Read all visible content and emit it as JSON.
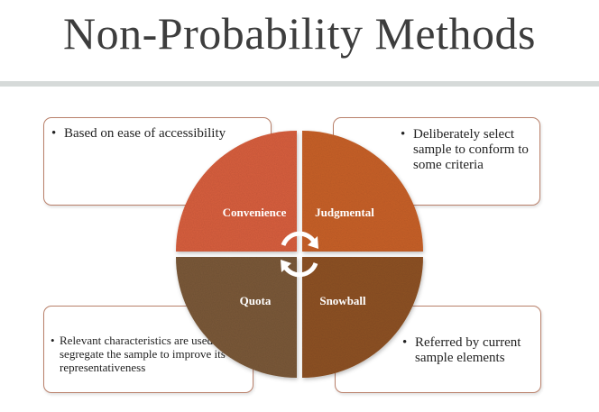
{
  "title": "Non-Probability Methods",
  "colors": {
    "convenience": "#d9613f",
    "judgmental": "#c9622a",
    "quota": "#7c5a3a",
    "snowball": "#8f5326",
    "callout_border": "#b9806a"
  },
  "quadrants": [
    {
      "label": "Convenience",
      "description": "Based on ease of accessibility"
    },
    {
      "label": "Judgmental",
      "description": "Deliberately select sample to conform to some criteria"
    },
    {
      "label": "Quota",
      "description": "Relevant characteristics are used to segregate the sample to improve its representativeness"
    },
    {
      "label": "Snowball",
      "description": "Referred by current sample elements"
    }
  ],
  "bullet": "•",
  "center_icon": "circular-arrows-icon"
}
